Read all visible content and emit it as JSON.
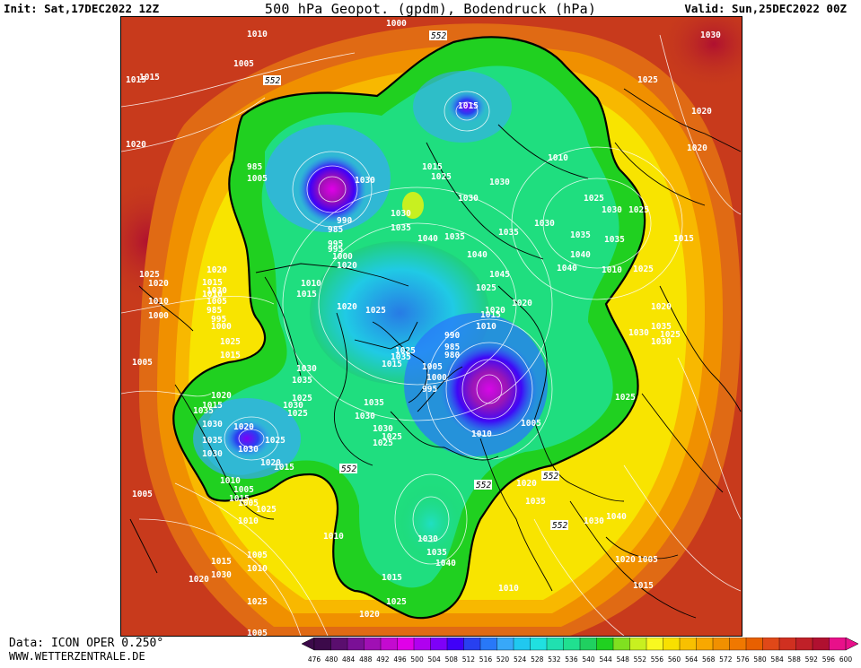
{
  "header": {
    "init": "Init: Sat,17DEC2022 12Z",
    "title": "500 hPa Geopot. (gpdm), Bodendruck (hPa)",
    "valid": "Valid: Sun,25DEC2022 00Z"
  },
  "footer": {
    "model": "Data: ICON OPER 0.250°",
    "website": "WWW.WETTERZENTRALE.DE"
  },
  "colorbar": {
    "values": [
      "476",
      "480",
      "484",
      "488",
      "492",
      "496",
      "500",
      "504",
      "508",
      "512",
      "516",
      "520",
      "524",
      "528",
      "532",
      "536",
      "540",
      "544",
      "548",
      "552",
      "556",
      "560",
      "564",
      "568",
      "572",
      "576",
      "580",
      "584",
      "588",
      "592",
      "596",
      "600"
    ],
    "colors": [
      "#3c0a4a",
      "#5a0e6e",
      "#7a1096",
      "#a010b4",
      "#c40ad0",
      "#e000e8",
      "#b000f0",
      "#7e00f8",
      "#4000f8",
      "#2840f0",
      "#2878f8",
      "#38a8f8",
      "#20c8f0",
      "#20e0e0",
      "#20e0b0",
      "#20e090",
      "#20d060",
      "#20d020",
      "#80e020",
      "#c8f020",
      "#f8f820",
      "#f8e000",
      "#f8c000",
      "#f8a800",
      "#f09000",
      "#f07800",
      "#e86000",
      "#e04818",
      "#d03020",
      "#c02028",
      "#b01030",
      "#e8108a"
    ]
  },
  "map": {
    "contour_552_label": "552",
    "pressure_labels": [
      "1000",
      "985",
      "1010",
      "1005",
      "1015",
      "1020",
      "1025",
      "1030",
      "1035",
      "1040",
      "1045",
      "990",
      "995",
      "980"
    ],
    "map_labels": [
      {
        "t": "1010"
      },
      {
        "t": "1000"
      },
      {
        "t": "552"
      },
      {
        "t": "1015"
      },
      {
        "t": "1005"
      },
      {
        "t": "552"
      },
      {
        "t": "1020"
      },
      {
        "t": "1015"
      },
      {
        "t": "1030"
      },
      {
        "t": "1025"
      },
      {
        "t": "1020"
      },
      {
        "t": "1020"
      },
      {
        "t": "985"
      },
      {
        "t": "1005"
      },
      {
        "t": "1025"
      },
      {
        "t": "990"
      },
      {
        "t": "1000"
      },
      {
        "t": "995"
      },
      {
        "t": "985"
      },
      {
        "t": "995"
      },
      {
        "t": "1010"
      },
      {
        "t": "1015"
      },
      {
        "t": "1020"
      },
      {
        "t": "1030"
      },
      {
        "t": "1030"
      },
      {
        "t": "1035"
      },
      {
        "t": "1035"
      },
      {
        "t": "1030"
      },
      {
        "t": "1040"
      },
      {
        "t": "1035"
      },
      {
        "t": "1040"
      },
      {
        "t": "1030"
      },
      {
        "t": "1025"
      },
      {
        "t": "1025"
      },
      {
        "t": "1020"
      },
      {
        "t": "1010"
      },
      {
        "t": "1015"
      },
      {
        "t": "1020"
      },
      {
        "t": "1015"
      },
      {
        "t": "1010"
      },
      {
        "t": "1015"
      },
      {
        "t": "1035"
      },
      {
        "t": "1030"
      },
      {
        "t": "1025"
      },
      {
        "t": "1045"
      },
      {
        "t": "1040"
      },
      {
        "t": "1040"
      },
      {
        "t": "1035"
      },
      {
        "t": "1030"
      },
      {
        "t": "1025"
      },
      {
        "t": "1010"
      },
      {
        "t": "1025"
      },
      {
        "t": "1015"
      },
      {
        "t": "1020"
      },
      {
        "t": "1035"
      },
      {
        "t": "1030"
      },
      {
        "t": "1025"
      },
      {
        "t": "1030"
      },
      {
        "t": "1025"
      },
      {
        "t": "1020"
      },
      {
        "t": "1035"
      },
      {
        "t": "1030"
      },
      {
        "t": "1040"
      },
      {
        "t": "1020"
      },
      {
        "t": "1005"
      },
      {
        "t": "1015"
      },
      {
        "t": "1010"
      },
      {
        "t": "1005"
      },
      {
        "t": "1005"
      },
      {
        "t": "1010"
      },
      {
        "t": "1030"
      },
      {
        "t": "1035"
      },
      {
        "t": "1025"
      },
      {
        "t": "1030"
      },
      {
        "t": "1025"
      },
      {
        "t": "990"
      },
      {
        "t": "985"
      },
      {
        "t": "980"
      },
      {
        "t": "1005"
      },
      {
        "t": "1000"
      },
      {
        "t": "995"
      },
      {
        "t": "1005"
      },
      {
        "t": "1010"
      },
      {
        "t": "1035"
      },
      {
        "t": "1030"
      },
      {
        "t": "1025"
      },
      {
        "t": "1020"
      },
      {
        "t": "1015"
      },
      {
        "t": "1035"
      },
      {
        "t": "1030"
      },
      {
        "t": "1035"
      },
      {
        "t": "1030"
      },
      {
        "t": "1025"
      },
      {
        "t": "1015"
      },
      {
        "t": "1020"
      },
      {
        "t": "1025"
      },
      {
        "t": "1035"
      },
      {
        "t": "1030"
      },
      {
        "t": "1025"
      },
      {
        "t": "1020"
      },
      {
        "t": "1015"
      },
      {
        "t": "1010"
      },
      {
        "t": "1005"
      },
      {
        "t": "985"
      },
      {
        "t": "995"
      },
      {
        "t": "1000"
      },
      {
        "t": "1025"
      },
      {
        "t": "1015"
      },
      {
        "t": "1020"
      },
      {
        "t": "1030"
      },
      {
        "t": "1010"
      },
      {
        "t": "1000"
      },
      {
        "t": "1005"
      },
      {
        "t": "1005"
      },
      {
        "t": "1010"
      },
      {
        "t": "1015"
      },
      {
        "t": "1030"
      },
      {
        "t": "1020"
      },
      {
        "t": "1005"
      },
      {
        "t": "1010"
      },
      {
        "t": "1015"
      },
      {
        "t": "1020"
      },
      {
        "t": "1025"
      },
      {
        "t": "1025"
      },
      {
        "t": "1020"
      },
      {
        "t": "1025"
      },
      {
        "t": "1030"
      },
      {
        "t": "1020"
      },
      {
        "t": "1015"
      },
      {
        "t": "1010"
      },
      {
        "t": "1005"
      },
      {
        "t": "1015"
      },
      {
        "t": "1025"
      },
      {
        "t": "552"
      },
      {
        "t": "552"
      },
      {
        "t": "552"
      },
      {
        "t": "552"
      },
      {
        "t": "1030"
      },
      {
        "t": "1035"
      },
      {
        "t": "1040"
      }
    ]
  }
}
